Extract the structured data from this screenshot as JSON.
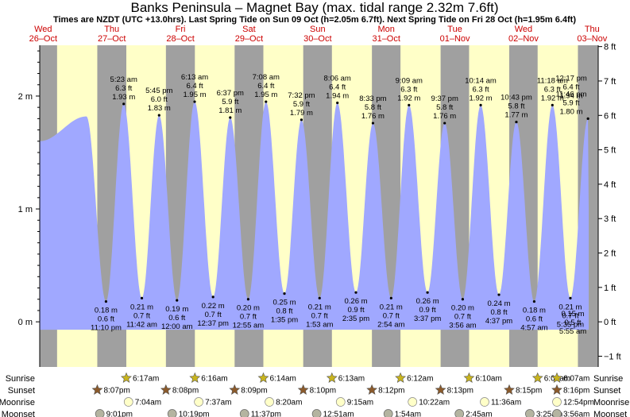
{
  "chart_data": {
    "type": "area",
    "title": "Banks Peninsula – Magnet Bay (max. tidal range 2.32m 7.6ft)",
    "subtitle": "Times are NZDT (UTC +13.0hrs). Last Spring Tide on Sun 09 Oct (h=2.05m 6.7ft). Next Spring Tide on Fri 28 Oct (h=1.95m 6.4ft)",
    "x_range_days": [
      26.0,
      34.0
    ],
    "ylim_m": [
      -0.4,
      2.45
    ],
    "ylim_ft": [
      -1,
      8
    ],
    "y_ticks_m": [
      "0 m",
      "1 m",
      "2 m"
    ],
    "y_ticks_ft": [
      "−1 ft",
      "0 ft",
      "1 ft",
      "2 ft",
      "3 ft",
      "4 ft",
      "5 ft",
      "6 ft",
      "7 ft",
      "8 ft"
    ],
    "days": [
      {
        "weekday": "Wed",
        "date": "26–Oct"
      },
      {
        "weekday": "Thu",
        "date": "27–Oct"
      },
      {
        "weekday": "Fri",
        "date": "28–Oct"
      },
      {
        "weekday": "Sat",
        "date": "29–Oct"
      },
      {
        "weekday": "Sun",
        "date": "30–Oct"
      },
      {
        "weekday": "Mon",
        "date": "31–Oct"
      },
      {
        "weekday": "Tue",
        "date": "01–Nov"
      },
      {
        "weekday": "Wed",
        "date": "02–Nov"
      },
      {
        "weekday": "Thu",
        "date": "03–Nov"
      }
    ],
    "night_bands": [
      {
        "from": 26.0,
        "to": 26.253
      },
      {
        "from": 26.839,
        "to": 27.262
      },
      {
        "from": 27.839,
        "to": 28.261
      },
      {
        "from": 28.84,
        "to": 29.259
      },
      {
        "from": 29.84,
        "to": 30.258
      },
      {
        "from": 30.841,
        "to": 31.257
      },
      {
        "from": 31.842,
        "to": 32.257
      },
      {
        "from": 32.842,
        "to": 33.256
      },
      {
        "from": 33.843,
        "to": 34.255
      }
    ],
    "start_tide": {
      "t": 26.0,
      "h": 1.6
    },
    "end_tide": {
      "t": 34.0,
      "h": 1.0
    },
    "series": [
      {
        "name": "high tides",
        "points": [
          {
            "t": 26.68,
            "h": 1.82,
            "label": null
          },
          {
            "t": 27.224,
            "h": 1.93,
            "label": [
              "5:23 am",
              "6.3 ft",
              "1.93 m"
            ]
          },
          {
            "t": 27.74,
            "h": 1.83,
            "label": [
              "5:45 pm",
              "6.0 ft",
              "1.83 m"
            ]
          },
          {
            "t": 28.258,
            "h": 1.95,
            "label": [
              "6:13 am",
              "6.4 ft",
              "1.95 m"
            ]
          },
          {
            "t": 28.776,
            "h": 1.81,
            "label": [
              "6:37 pm",
              "5.9 ft",
              "1.81 m"
            ]
          },
          {
            "t": 29.297,
            "h": 1.95,
            "label": [
              "7:08 am",
              "6.4 ft",
              "1.95 m"
            ]
          },
          {
            "t": 29.814,
            "h": 1.79,
            "label": [
              "7:32 pm",
              "5.9 ft",
              "1.79 m"
            ]
          },
          {
            "t": 30.338,
            "h": 1.94,
            "label": [
              "8:06 am",
              "6.4 ft",
              "1.94 m"
            ]
          },
          {
            "t": 30.856,
            "h": 1.76,
            "label": [
              "8:33 pm",
              "5.8 ft",
              "1.76 m"
            ]
          },
          {
            "t": 31.381,
            "h": 1.92,
            "label": [
              "9:09 am",
              "6.3 ft",
              "1.92 m"
            ]
          },
          {
            "t": 31.901,
            "h": 1.76,
            "label": [
              "9:37 pm",
              "5.8 ft",
              "1.76 m"
            ]
          },
          {
            "t": 32.426,
            "h": 1.92,
            "label": [
              "10:14 am",
              "6.3 ft",
              "1.92 m"
            ]
          },
          {
            "t": 32.946,
            "h": 1.77,
            "label": [
              "10:43 pm",
              "5.8 ft",
              "1.77 m"
            ]
          },
          {
            "t": 33.471,
            "h": 1.92,
            "label": [
              "11:18 am",
              "6.3 ft",
              "1.92 m"
            ]
          },
          {
            "t": 33.99,
            "h": 1.8,
            "label": [
              "11:46 pm",
              "5.9 ft",
              "1.80 m"
            ]
          },
          {
            "t": 34.512,
            "h": 1.94,
            "label": [
              "12:17 pm",
              "6.4 ft",
              "1.94 m"
            ]
          }
        ]
      },
      {
        "name": "low tides",
        "points": [
          {
            "t": 26.966,
            "h": 0.18,
            "label": [
              "0.18 m",
              "0.6 ft",
              "11:10 pm"
            ]
          },
          {
            "t": 27.488,
            "h": 0.21,
            "label": [
              "0.21 m",
              "0.7 ft",
              "11:42 am"
            ]
          },
          {
            "t": 28.0,
            "h": 0.19,
            "label": [
              "0.19 m",
              "0.6 ft",
              "12:00 am"
            ]
          },
          {
            "t": 28.526,
            "h": 0.22,
            "label": [
              "0.22 m",
              "0.7 ft",
              "12:37 pm"
            ]
          },
          {
            "t": 29.038,
            "h": 0.2,
            "label": [
              "0.20 m",
              "0.7 ft",
              "12:55 am"
            ]
          },
          {
            "t": 29.566,
            "h": 0.25,
            "label": [
              "0.25 m",
              "0.8 ft",
              "1:35 pm"
            ]
          },
          {
            "t": 30.078,
            "h": 0.21,
            "label": [
              "0.21 m",
              "0.7 ft",
              "1:53 am"
            ]
          },
          {
            "t": 30.608,
            "h": 0.26,
            "label": [
              "0.26 m",
              "0.9 ft",
              "2:35 pm"
            ]
          },
          {
            "t": 31.121,
            "h": 0.21,
            "label": [
              "0.21 m",
              "0.7 ft",
              "2:54 am"
            ]
          },
          {
            "t": 31.651,
            "h": 0.26,
            "label": [
              "0.26 m",
              "0.9 ft",
              "3:37 pm"
            ]
          },
          {
            "t": 32.164,
            "h": 0.2,
            "label": [
              "0.20 m",
              "0.7 ft",
              "3:56 am"
            ]
          },
          {
            "t": 32.692,
            "h": 0.24,
            "label": [
              "0.24 m",
              "0.8 ft",
              "4:37 pm"
            ]
          },
          {
            "t": 33.206,
            "h": 0.18,
            "label": [
              "0.18 m",
              "0.6 ft",
              "4:57 am"
            ]
          },
          {
            "t": 33.733,
            "h": 0.21,
            "label": [
              "0.21 m",
              "0.7 ft",
              "5:35 pm"
            ]
          },
          {
            "t": 34.246,
            "h": 0.15,
            "label": [
              "0.15 m",
              "0.5 ft",
              "5:55 am"
            ]
          }
        ]
      }
    ],
    "astro": {
      "row_labels": [
        "Sunrise",
        "Sunset",
        "Moonrise",
        "Moonset"
      ],
      "sunrise": [
        {
          "t": 27.262,
          "text": "6:17am"
        },
        {
          "t": 28.261,
          "text": "6:16am"
        },
        {
          "t": 29.259,
          "text": "6:14am"
        },
        {
          "t": 30.258,
          "text": "6:13am"
        },
        {
          "t": 31.257,
          "text": "6:12am"
        },
        {
          "t": 32.257,
          "text": "6:10am"
        },
        {
          "t": 33.256,
          "text": "6:09am"
        },
        {
          "t": 34.255,
          "text": "6:07am"
        }
      ],
      "sunset": [
        {
          "t": 26.839,
          "text": "8:07pm"
        },
        {
          "t": 27.839,
          "text": "8:08pm"
        },
        {
          "t": 28.84,
          "text": "8:09pm"
        },
        {
          "t": 29.84,
          "text": "8:10pm"
        },
        {
          "t": 30.841,
          "text": "8:12pm"
        },
        {
          "t": 31.842,
          "text": "8:13pm"
        },
        {
          "t": 32.842,
          "text": "8:15pm"
        },
        {
          "t": 33.843,
          "text": "8:16pm"
        }
      ],
      "moonrise": [
        {
          "t": 27.294,
          "text": "7:04am"
        },
        {
          "t": 28.317,
          "text": "7:37am"
        },
        {
          "t": 29.347,
          "text": "8:20am"
        },
        {
          "t": 30.385,
          "text": "9:15am"
        },
        {
          "t": 31.432,
          "text": "10:22am"
        },
        {
          "t": 32.483,
          "text": "11:36am"
        },
        {
          "t": 33.538,
          "text": "12:54pm"
        }
      ],
      "moonset": [
        {
          "t": 26.876,
          "text": "9:01pm"
        },
        {
          "t": 27.93,
          "text": "10:19pm"
        },
        {
          "t": 28.984,
          "text": "11:37pm"
        },
        {
          "t": 30.036,
          "text": "12:51am"
        },
        {
          "t": 31.079,
          "text": "1:54am"
        },
        {
          "t": 32.115,
          "text": "2:45am"
        },
        {
          "t": 33.142,
          "text": "3:25am"
        },
        {
          "t": 34.164,
          "text": "3:56am"
        }
      ]
    },
    "colors": {
      "day_band": "#ffffc8",
      "night_band": "#a0a0a0",
      "water": "#a0a8ff",
      "sun_icon": "#c8b41e",
      "sunset_icon": "#8b5a2b",
      "moonrise_icon": "#ffffc8",
      "moonset_icon": "#b4b4a0",
      "day_label": "#cc0000"
    }
  }
}
